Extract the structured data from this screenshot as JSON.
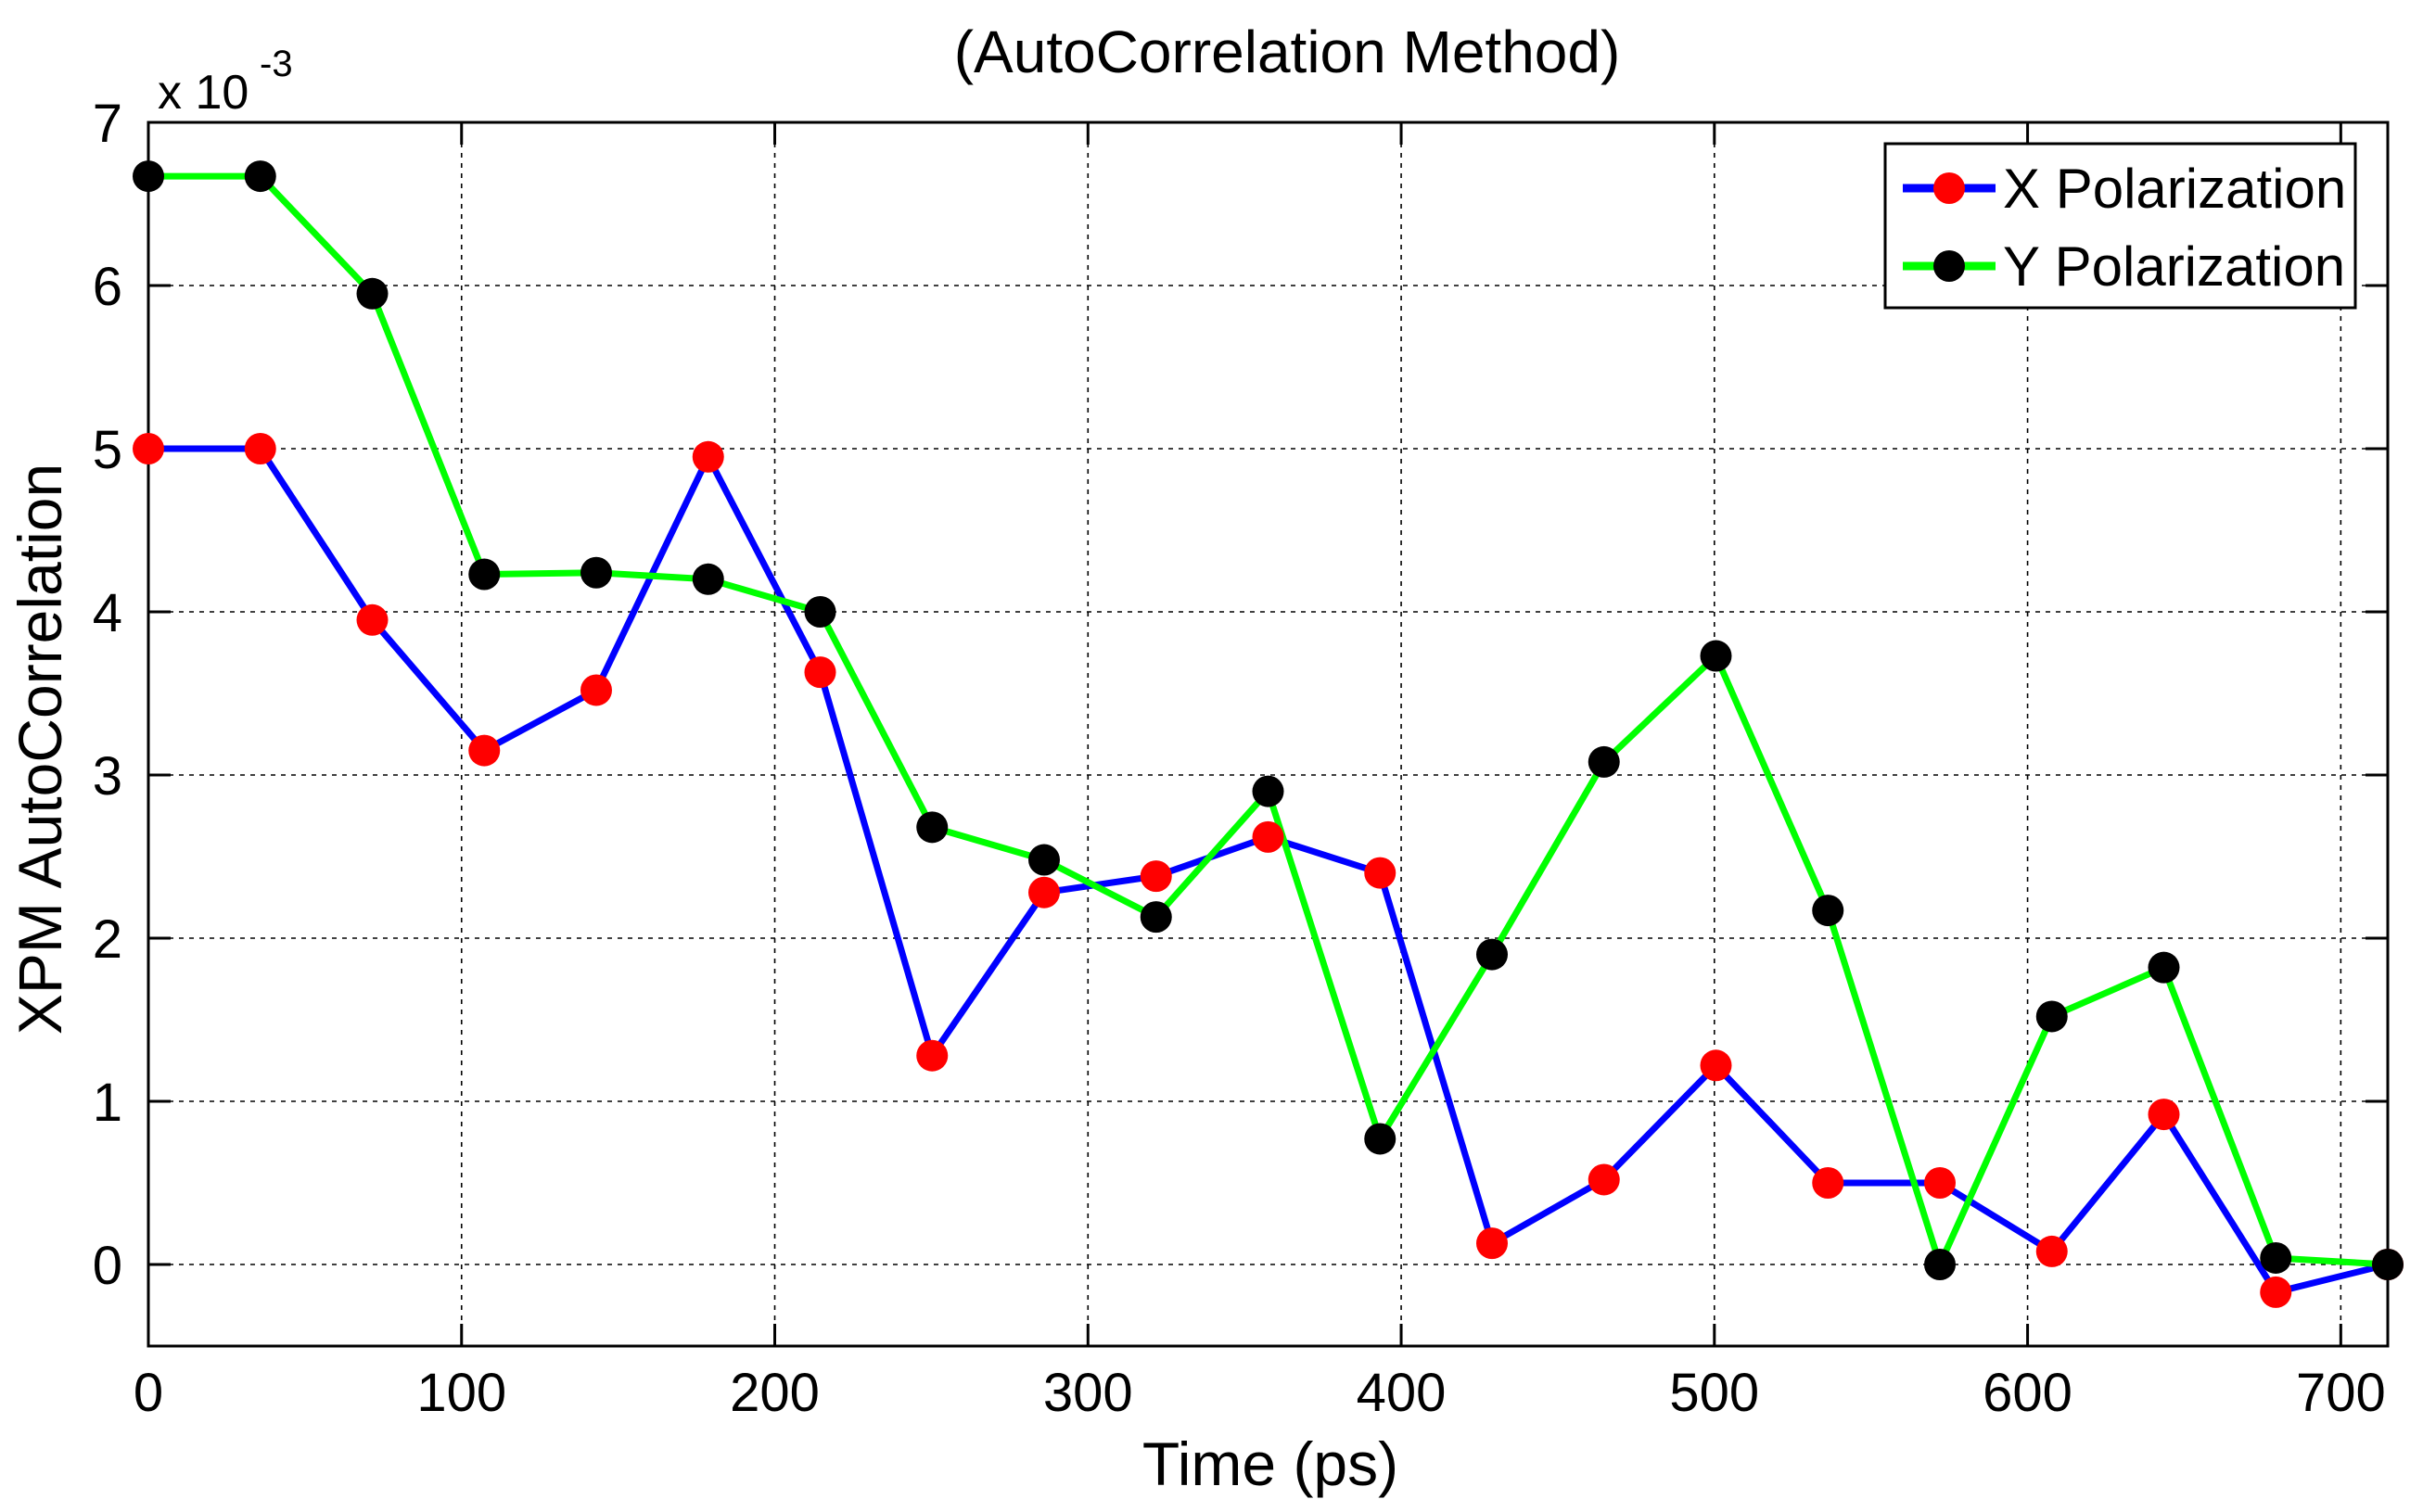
{
  "chart_data": {
    "type": "line",
    "title": "(AutoCorrelation Method)",
    "xlabel": "Time (ps)",
    "ylabel": "XPM AutoCorrelation",
    "y_exponent_label": "x 10",
    "y_exponent_power": "-3",
    "xlim": [
      0,
      715
    ],
    "ylim": [
      -0.5,
      7
    ],
    "x_ticks": [
      0,
      100,
      200,
      300,
      400,
      500,
      600,
      700
    ],
    "x_tick_labels": [
      "0",
      "100",
      "200",
      "300",
      "400",
      "500",
      "600",
      "700"
    ],
    "y_ticks": [
      0,
      1,
      2,
      3,
      4,
      5,
      6,
      7
    ],
    "y_tick_labels": [
      "0",
      "1",
      "2",
      "3",
      "4",
      "5",
      "6",
      "7"
    ],
    "grid": true,
    "legend_position": "top-right",
    "x": [
      0,
      35.75,
      71.5,
      107.25,
      143,
      178.75,
      214.5,
      250.25,
      286,
      321.75,
      357.5,
      393.25,
      429,
      464.75,
      500.5,
      536.25,
      572,
      607.75,
      643.5,
      679.25,
      715
    ],
    "series": [
      {
        "name": "X Polarization",
        "line_color": "#0000ff",
        "marker_color": "#ff0000",
        "values": [
          5.0,
          5.0,
          3.95,
          3.15,
          3.52,
          4.95,
          3.63,
          1.28,
          2.28,
          2.38,
          2.62,
          2.4,
          0.13,
          0.52,
          1.22,
          0.5,
          0.5,
          0.08,
          0.92,
          -0.17,
          0.0
        ]
      },
      {
        "name": "Y Polarization",
        "line_color": "#00ff00",
        "marker_color": "#000000",
        "values": [
          6.67,
          6.67,
          5.95,
          4.23,
          4.24,
          4.2,
          4.0,
          2.68,
          2.48,
          2.13,
          2.9,
          0.77,
          1.9,
          3.08,
          3.73,
          2.17,
          0.0,
          1.52,
          1.82,
          0.04,
          0.0
        ]
      }
    ]
  }
}
